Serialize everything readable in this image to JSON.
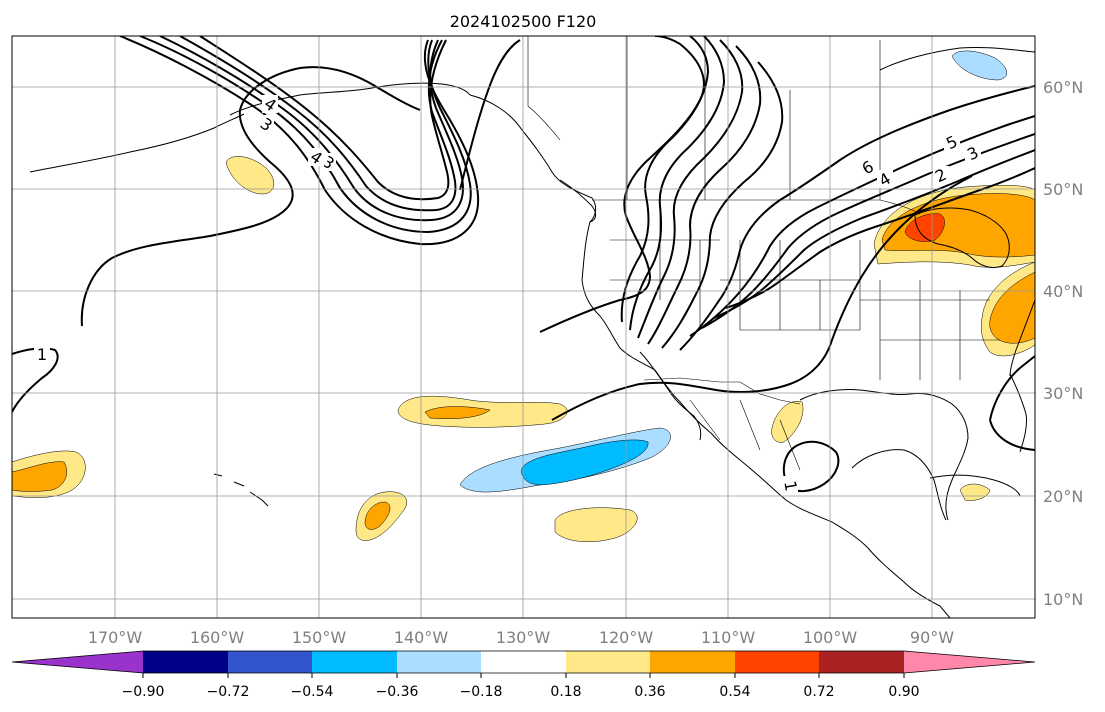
{
  "title": "2024102500 F120",
  "map": {
    "lon_range": [
      -180,
      -80
    ],
    "lat_range": [
      8,
      65
    ],
    "longitude_ticks": [
      "170°W",
      "160°W",
      "150°W",
      "140°W",
      "130°W",
      "120°W",
      "110°W",
      "100°W",
      "90°W"
    ],
    "longitude_values": [
      -170,
      -160,
      -150,
      -140,
      -130,
      -120,
      -110,
      -100,
      -90
    ],
    "latitude_ticks": [
      "60°N",
      "50°N",
      "40°N",
      "30°N",
      "20°N",
      "10°N"
    ],
    "latitude_values": [
      60,
      50,
      40,
      30,
      20,
      10
    ],
    "gridlines": true
  },
  "colorbar": {
    "orientation": "horizontal",
    "extend": "both",
    "tick_labels": [
      "−0.90",
      "−0.72",
      "−0.54",
      "−0.36",
      "−0.18",
      "0.18",
      "0.36",
      "0.54",
      "0.72",
      "0.90"
    ],
    "colors": [
      "#9933cc",
      "#000088",
      "#3355cc",
      "#00bbff",
      "#aaddff",
      "#ffffff",
      "#ffe888",
      "#ffa500",
      "#ff4400",
      "#aa2222",
      "#ff88aa"
    ]
  },
  "contour_labels": [
    "1",
    "2",
    "3",
    "4",
    "5",
    "6",
    "3",
    "4",
    "3",
    "4",
    "1"
  ]
}
